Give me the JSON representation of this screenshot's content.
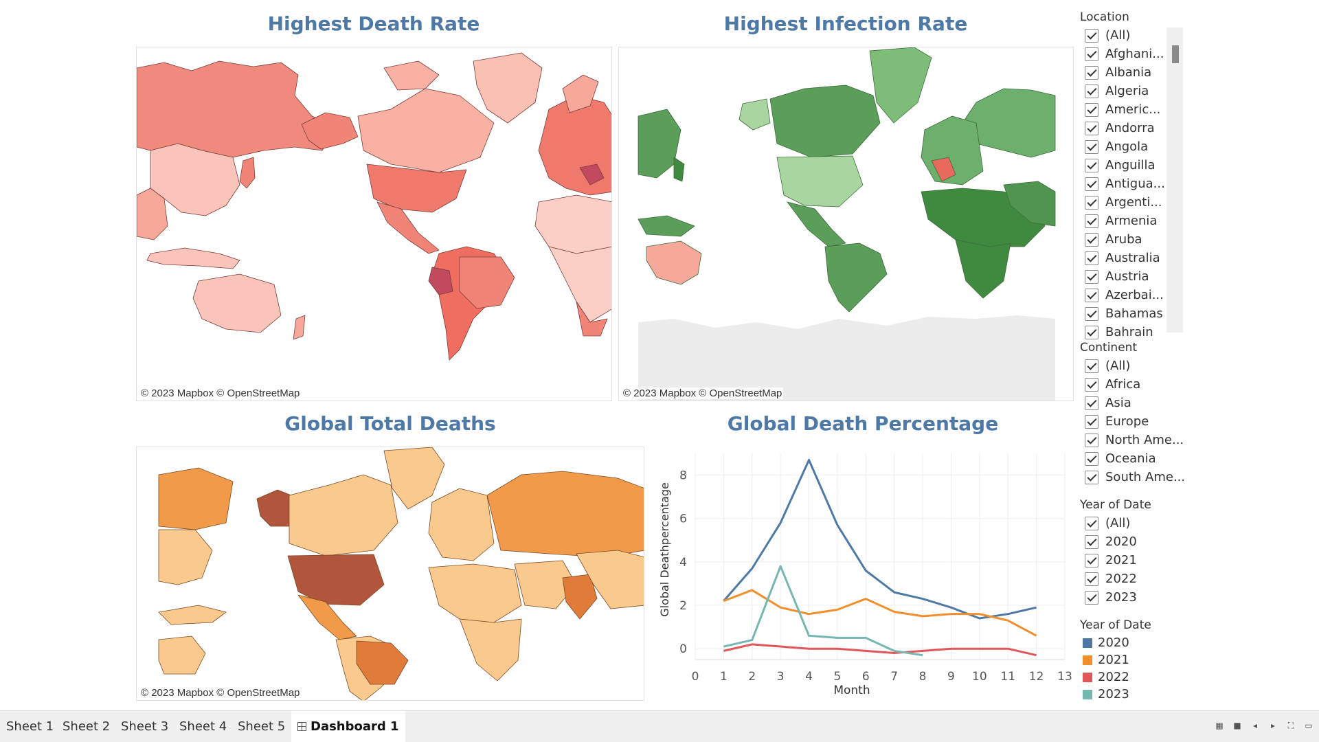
{
  "titles": {
    "death_rate": "Highest Death Rate",
    "infection_rate": "Highest Infection Rate",
    "total_deaths": "Global Total Deaths",
    "death_percentage": "Global Death Percentage"
  },
  "map_credit": "© 2023 Mapbox © OpenStreetMap",
  "filters": {
    "location": {
      "title": "Location",
      "items": [
        "(All)",
        "Afghani...",
        "Albania",
        "Algeria",
        "Americ...",
        "Andorra",
        "Angola",
        "Anguilla",
        "Antigua...",
        "Argenti...",
        "Armenia",
        "Aruba",
        "Australia",
        "Austria",
        "Azerbai...",
        "Bahamas",
        "Bahrain"
      ]
    },
    "continent": {
      "title": "Continent",
      "items": [
        "(All)",
        "Africa",
        "Asia",
        "Europe",
        "North Ame...",
        "Oceania",
        "South Ame..."
      ]
    },
    "year": {
      "title": "Year of Date",
      "items": [
        "(All)",
        "2020",
        "2021",
        "2022",
        "2023"
      ]
    }
  },
  "legend": {
    "title": "Year of Date",
    "items": [
      {
        "label": "2020",
        "color": "#4e79a7"
      },
      {
        "label": "2021",
        "color": "#f28e2b"
      },
      {
        "label": "2022",
        "color": "#e15759"
      },
      {
        "label": "2023",
        "color": "#76b7b2"
      }
    ]
  },
  "chart_data": {
    "type": "line",
    "title": "Global Death Percentage",
    "xlabel": "Month",
    "ylabel": "Global Deathpercentage",
    "xlim": [
      0,
      13
    ],
    "ylim": [
      -0.5,
      9
    ],
    "xticks": [
      "0",
      "1",
      "2",
      "3",
      "4",
      "5",
      "6",
      "7",
      "8",
      "9",
      "10",
      "11",
      "12",
      "13"
    ],
    "yticks": [
      "0",
      "2",
      "4",
      "6",
      "8"
    ],
    "grid": true,
    "series": [
      {
        "name": "2020",
        "color": "#4e79a7",
        "x": [
          1,
          2,
          3,
          4,
          5,
          6,
          7,
          8,
          9,
          10,
          11,
          12
        ],
        "y": [
          2.2,
          3.7,
          5.8,
          8.7,
          5.7,
          3.6,
          2.6,
          2.3,
          1.9,
          1.4,
          1.6,
          1.9
        ]
      },
      {
        "name": "2021",
        "color": "#f28e2b",
        "x": [
          1,
          2,
          3,
          4,
          5,
          6,
          7,
          8,
          9,
          10,
          11,
          12
        ],
        "y": [
          2.2,
          2.7,
          1.9,
          1.6,
          1.8,
          2.3,
          1.7,
          1.5,
          1.6,
          1.6,
          1.3,
          0.6
        ]
      },
      {
        "name": "2022",
        "color": "#e15759",
        "x": [
          1,
          2,
          3,
          4,
          5,
          6,
          7,
          8,
          9,
          10,
          11,
          12
        ],
        "y": [
          -0.1,
          0.2,
          0.1,
          0.0,
          0.0,
          -0.1,
          -0.2,
          -0.1,
          0.0,
          0.0,
          0.0,
          -0.3
        ]
      },
      {
        "name": "2023",
        "color": "#76b7b2",
        "x": [
          1,
          2,
          3,
          4,
          5,
          6,
          7,
          8
        ],
        "y": [
          0.1,
          0.4,
          3.8,
          0.6,
          0.5,
          0.5,
          -0.1,
          -0.3
        ]
      }
    ]
  },
  "tabs": [
    "Sheet 1",
    "Sheet 2",
    "Sheet 3",
    "Sheet 4",
    "Sheet 5",
    "Dashboard 1"
  ],
  "active_tab": "Dashboard 1"
}
